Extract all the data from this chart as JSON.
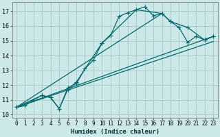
{
  "xlabel": "Humidex (Indice chaleur)",
  "bg_color": "#cce8e8",
  "line_color": "#006868",
  "grid_color": "#aacccc",
  "xlim": [
    -0.5,
    23.5
  ],
  "ylim": [
    9.8,
    17.6
  ],
  "yticks": [
    10,
    11,
    12,
    13,
    14,
    15,
    16,
    17
  ],
  "xticks": [
    0,
    1,
    2,
    3,
    4,
    5,
    6,
    7,
    8,
    9,
    10,
    11,
    12,
    13,
    14,
    15,
    16,
    17,
    18,
    19,
    20,
    21,
    22,
    23
  ],
  "line1_x": [
    0,
    1,
    2,
    3,
    4,
    5,
    6,
    7,
    8,
    9,
    10,
    11,
    12,
    13,
    14,
    15,
    16,
    17,
    18,
    19,
    20,
    21,
    22,
    23
  ],
  "line1_y": [
    10.5,
    10.6,
    11.0,
    11.3,
    11.15,
    10.4,
    11.8,
    12.1,
    13.1,
    13.7,
    14.85,
    15.35,
    16.65,
    16.9,
    17.1,
    17.3,
    16.7,
    16.85,
    16.3,
    15.9,
    14.9,
    15.3,
    15.05,
    15.3
  ],
  "line2_x": [
    0,
    3,
    4,
    5,
    6,
    7,
    10,
    14,
    17,
    18,
    20,
    22,
    23
  ],
  "line2_y": [
    10.5,
    11.3,
    11.15,
    10.4,
    11.7,
    12.2,
    14.85,
    17.1,
    16.85,
    16.3,
    15.9,
    15.05,
    15.3
  ],
  "line3_x": [
    0,
    23
  ],
  "line3_y": [
    10.5,
    15.3
  ],
  "line4_x": [
    0,
    23
  ],
  "line4_y": [
    10.5,
    15.3
  ],
  "line5_x": [
    0,
    17
  ],
  "line5_y": [
    10.5,
    16.85
  ],
  "marker_size": 2.5,
  "linewidth": 0.9,
  "tick_fontsize": 5.5,
  "xlabel_fontsize": 6.5
}
